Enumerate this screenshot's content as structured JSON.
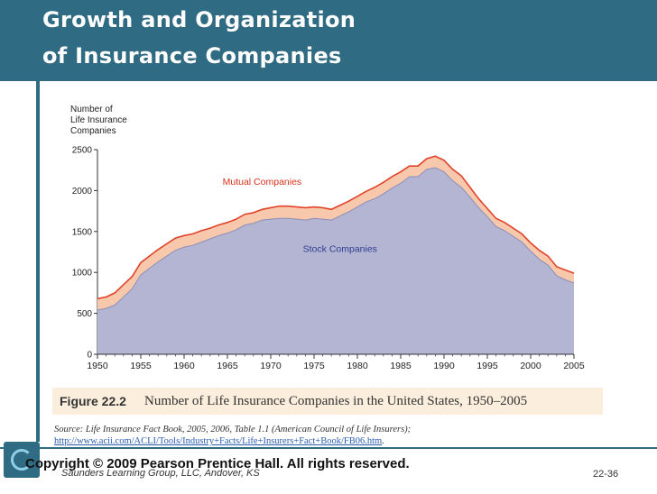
{
  "slide": {
    "title_line1": "Growth and Organization",
    "title_line2": "of Insurance Companies",
    "figure_label": "Figure 22.2",
    "figure_caption": "Number of Life Insurance Companies in the United States, 1950–2005",
    "source_prefix": "Source: Life Insurance Fact Book, 2005, 2006, Table 1.1 (American Council of Life Insurers);",
    "source_url": "http://www.acii.com/ACLI/Tools/Industry+Facts/Life+Insurers+Fact+Book/FB06.htm",
    "source_suffix": ".",
    "copyright": "Copyright © 2009 Pearson Prentice Hall. All rights reserved.",
    "publisher": "Saunders Learning Group, LLC, Andover, KS",
    "page_number": "22-36"
  },
  "colors": {
    "title_bar": "#2f6b83",
    "stock_fill": "#b3b5d3",
    "mutual_fill": "#f7c8ac",
    "mutual_line": "#e0432a",
    "label_red": "#d9311d",
    "label_blue": "#2f3d8f"
  },
  "chart_data": {
    "type": "area",
    "ylabel": "Number of Life Insurance Companies",
    "ylim": [
      0,
      2500
    ],
    "yticks": [
      0,
      500,
      1000,
      1500,
      2000,
      2500
    ],
    "xlim": [
      1950,
      2005
    ],
    "xticks": [
      1950,
      1955,
      1960,
      1965,
      1970,
      1975,
      1980,
      1985,
      1990,
      1995,
      2000,
      2005
    ],
    "grid": false,
    "x": [
      1950,
      1951,
      1952,
      1953,
      1954,
      1955,
      1956,
      1957,
      1958,
      1959,
      1960,
      1961,
      1962,
      1963,
      1964,
      1965,
      1966,
      1967,
      1968,
      1969,
      1970,
      1971,
      1972,
      1973,
      1974,
      1975,
      1976,
      1977,
      1978,
      1979,
      1980,
      1981,
      1982,
      1983,
      1984,
      1985,
      1986,
      1987,
      1988,
      1989,
      1990,
      1991,
      1992,
      1993,
      1994,
      1995,
      1996,
      1997,
      1998,
      1999,
      2000,
      2001,
      2002,
      2003,
      2004,
      2005
    ],
    "series": [
      {
        "name": "Stock Companies",
        "values": [
          540,
          560,
          600,
          700,
          800,
          970,
          1050,
          1130,
          1200,
          1270,
          1310,
          1330,
          1370,
          1410,
          1450,
          1480,
          1520,
          1580,
          1600,
          1640,
          1650,
          1660,
          1660,
          1650,
          1640,
          1660,
          1650,
          1640,
          1690,
          1740,
          1800,
          1860,
          1900,
          1960,
          2030,
          2090,
          2170,
          2170,
          2260,
          2280,
          2230,
          2120,
          2040,
          1920,
          1790,
          1680,
          1560,
          1510,
          1440,
          1370,
          1260,
          1160,
          1090,
          960,
          910,
          870
        ]
      },
      {
        "name": "Mutual Companies",
        "values": [
          140,
          140,
          150,
          150,
          150,
          150,
          150,
          150,
          150,
          150,
          140,
          140,
          140,
          130,
          130,
          130,
          130,
          130,
          130,
          130,
          140,
          150,
          150,
          150,
          150,
          140,
          140,
          130,
          130,
          130,
          130,
          130,
          140,
          140,
          140,
          140,
          130,
          130,
          130,
          140,
          140,
          140,
          140,
          120,
          110,
          100,
          100,
          100,
          100,
          100,
          100,
          110,
          110,
          110,
          120,
          120
        ]
      }
    ],
    "annotations": [
      "Mutual Companies",
      "Stock Companies"
    ]
  }
}
